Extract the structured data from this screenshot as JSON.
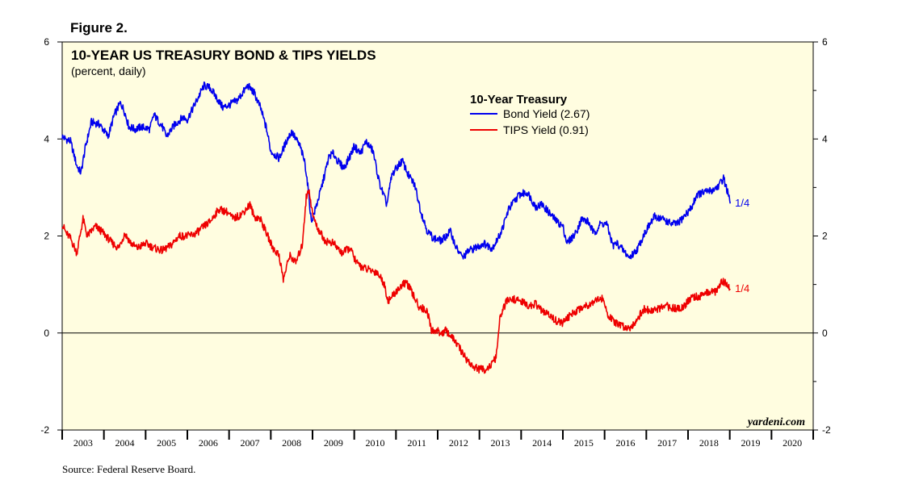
{
  "figure_label": "Figure 2.",
  "source": "Source: Federal Reserve Board.",
  "watermark": "yardeni.com",
  "colors": {
    "background": "#fffde0",
    "bond": "#0000ee",
    "tips": "#ee0000",
    "frame": "#000000"
  },
  "chart_data": {
    "type": "line",
    "title": "10-YEAR US TREASURY BOND & TIPS YIELDS",
    "subtitle": "(percent, daily)",
    "legend_title": "10-Year Treasury",
    "legend_position": "top-center",
    "xlabel": "",
    "ylabel": "",
    "xlim": [
      2003.0,
      2021.0
    ],
    "ylim": [
      -2,
      6
    ],
    "yticks": [
      -2,
      0,
      2,
      4,
      6
    ],
    "year_labels": [
      "2003",
      "2004",
      "2005",
      "2006",
      "2007",
      "2008",
      "2009",
      "2010",
      "2011",
      "2012",
      "2013",
      "2014",
      "2015",
      "2016",
      "2017",
      "2018",
      "2019",
      "2020"
    ],
    "zero_line": true,
    "series": [
      {
        "name": "Bond Yield (2.67)",
        "end_label": "1/4",
        "x": [
          2003.0,
          2003.08,
          2003.2,
          2003.35,
          2003.45,
          2003.55,
          2003.7,
          2003.9,
          2004.1,
          2004.25,
          2004.4,
          2004.5,
          2004.6,
          2004.75,
          2004.9,
          2005.1,
          2005.2,
          2005.4,
          2005.5,
          2005.7,
          2005.9,
          2006.0,
          2006.2,
          2006.4,
          2006.55,
          2006.7,
          2006.85,
          2007.0,
          2007.2,
          2007.45,
          2007.6,
          2007.75,
          2007.9,
          2008.0,
          2008.2,
          2008.4,
          2008.5,
          2008.7,
          2008.82,
          2008.9,
          2008.97,
          2009.05,
          2009.2,
          2009.4,
          2009.5,
          2009.6,
          2009.75,
          2009.9,
          2010.0,
          2010.15,
          2010.28,
          2010.45,
          2010.6,
          2010.78,
          2010.9,
          2011.05,
          2011.15,
          2011.3,
          2011.45,
          2011.6,
          2011.75,
          2011.9,
          2012.1,
          2012.3,
          2012.45,
          2012.6,
          2012.75,
          2012.9,
          2013.1,
          2013.3,
          2013.45,
          2013.55,
          2013.7,
          2013.95,
          2014.15,
          2014.35,
          2014.5,
          2014.7,
          2014.85,
          2015.0,
          2015.1,
          2015.3,
          2015.45,
          2015.6,
          2015.75,
          2015.9,
          2016.05,
          2016.2,
          2016.3,
          2016.5,
          2016.6,
          2016.8,
          2016.95,
          2017.2,
          2017.4,
          2017.6,
          2017.75,
          2017.95,
          2018.1,
          2018.2,
          2018.4,
          2018.6,
          2018.75,
          2018.85,
          2018.95,
          2019.01
        ],
        "y": [
          4.05,
          4.0,
          3.95,
          3.45,
          3.3,
          3.8,
          4.35,
          4.3,
          4.05,
          4.5,
          4.75,
          4.55,
          4.25,
          4.2,
          4.25,
          4.2,
          4.5,
          4.25,
          4.05,
          4.3,
          4.45,
          4.4,
          4.75,
          5.1,
          5.05,
          4.85,
          4.65,
          4.7,
          4.8,
          5.1,
          4.95,
          4.65,
          4.2,
          3.75,
          3.6,
          4.0,
          4.15,
          3.85,
          3.5,
          2.95,
          2.3,
          2.5,
          2.95,
          3.65,
          3.7,
          3.55,
          3.4,
          3.65,
          3.85,
          3.7,
          3.95,
          3.75,
          3.1,
          2.65,
          3.25,
          3.45,
          3.55,
          3.25,
          3.05,
          2.5,
          2.1,
          1.95,
          1.9,
          2.1,
          1.75,
          1.55,
          1.7,
          1.75,
          1.85,
          1.75,
          1.95,
          2.15,
          2.55,
          2.85,
          2.9,
          2.6,
          2.65,
          2.45,
          2.3,
          2.2,
          1.85,
          2.05,
          2.35,
          2.3,
          2.05,
          2.25,
          2.25,
          1.8,
          1.85,
          1.65,
          1.55,
          1.75,
          2.05,
          2.4,
          2.35,
          2.25,
          2.25,
          2.45,
          2.6,
          2.85,
          2.9,
          2.95,
          3.05,
          3.2,
          2.9,
          2.67
        ]
      },
      {
        "name": "TIPS Yield (0.91)",
        "end_label": "1/4",
        "x": [
          2003.0,
          2003.1,
          2003.2,
          2003.35,
          2003.5,
          2003.6,
          2003.8,
          2004.0,
          2004.2,
          2004.35,
          2004.5,
          2004.65,
          2004.8,
          2005.0,
          2005.2,
          2005.4,
          2005.6,
          2005.8,
          2006.0,
          2006.2,
          2006.4,
          2006.55,
          2006.75,
          2006.95,
          2007.1,
          2007.3,
          2007.5,
          2007.6,
          2007.75,
          2007.9,
          2008.05,
          2008.2,
          2008.3,
          2008.45,
          2008.6,
          2008.75,
          2008.85,
          2008.92,
          2009.0,
          2009.1,
          2009.3,
          2009.5,
          2009.7,
          2009.9,
          2010.05,
          2010.2,
          2010.35,
          2010.55,
          2010.7,
          2010.82,
          2010.95,
          2011.1,
          2011.25,
          2011.4,
          2011.55,
          2011.75,
          2011.85,
          2011.95,
          2012.1,
          2012.2,
          2012.4,
          2012.55,
          2012.7,
          2012.85,
          2013.0,
          2013.15,
          2013.3,
          2013.4,
          2013.5,
          2013.65,
          2013.8,
          2014.0,
          2014.2,
          2014.35,
          2014.5,
          2014.7,
          2014.85,
          2015.0,
          2015.1,
          2015.3,
          2015.5,
          2015.65,
          2015.8,
          2015.95,
          2016.1,
          2016.25,
          2016.4,
          2016.6,
          2016.75,
          2016.95,
          2017.1,
          2017.3,
          2017.5,
          2017.7,
          2017.9,
          2018.1,
          2018.3,
          2018.5,
          2018.65,
          2018.8,
          2018.9,
          2019.01
        ],
        "y": [
          2.25,
          2.05,
          1.95,
          1.65,
          2.35,
          2.0,
          2.2,
          2.05,
          1.85,
          1.75,
          2.05,
          1.85,
          1.75,
          1.85,
          1.75,
          1.7,
          1.8,
          2.0,
          2.0,
          2.05,
          2.2,
          2.3,
          2.55,
          2.5,
          2.35,
          2.45,
          2.65,
          2.4,
          2.35,
          2.05,
          1.75,
          1.6,
          1.1,
          1.6,
          1.45,
          1.8,
          2.8,
          2.95,
          2.45,
          2.2,
          1.9,
          1.85,
          1.65,
          1.75,
          1.45,
          1.35,
          1.3,
          1.25,
          1.05,
          0.65,
          0.8,
          0.95,
          1.05,
          0.8,
          0.55,
          0.45,
          0.05,
          0.05,
          0.0,
          0.05,
          -0.15,
          -0.35,
          -0.55,
          -0.7,
          -0.75,
          -0.75,
          -0.65,
          -0.5,
          0.35,
          0.65,
          0.7,
          0.65,
          0.55,
          0.6,
          0.45,
          0.35,
          0.25,
          0.2,
          0.3,
          0.45,
          0.55,
          0.6,
          0.7,
          0.7,
          0.35,
          0.2,
          0.15,
          0.1,
          0.25,
          0.5,
          0.45,
          0.5,
          0.55,
          0.5,
          0.55,
          0.75,
          0.75,
          0.85,
          0.85,
          1.05,
          1.05,
          0.91
        ]
      }
    ]
  }
}
